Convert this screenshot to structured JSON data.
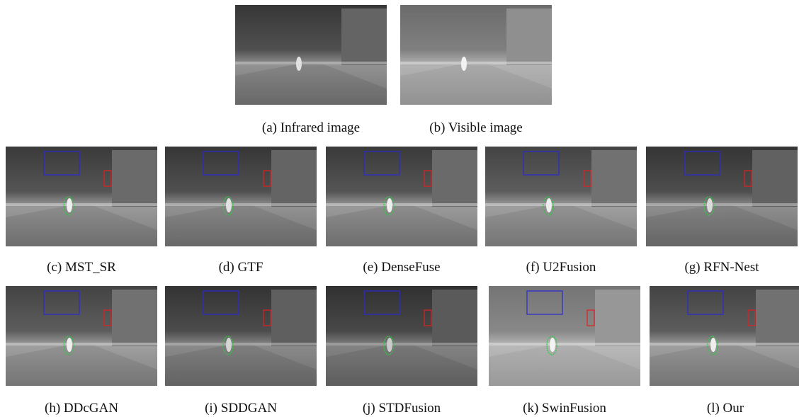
{
  "figure": {
    "panels": [
      {
        "caption": "(a) Infrared image"
      },
      {
        "caption": "(b) Visible image"
      },
      {
        "caption": "(c) MST_SR"
      },
      {
        "caption": "(d) GTF"
      },
      {
        "caption": "(e) DenseFuse"
      },
      {
        "caption": "(f) U2Fusion"
      },
      {
        "caption": "(g) RFN-Nest"
      },
      {
        "caption": "(h) DDcGAN"
      },
      {
        "caption": "(i) SDDGAN"
      },
      {
        "caption": "(j) STDFusion"
      },
      {
        "caption": "(k) SwinFusion"
      },
      {
        "caption": "(l) Our"
      }
    ]
  }
}
